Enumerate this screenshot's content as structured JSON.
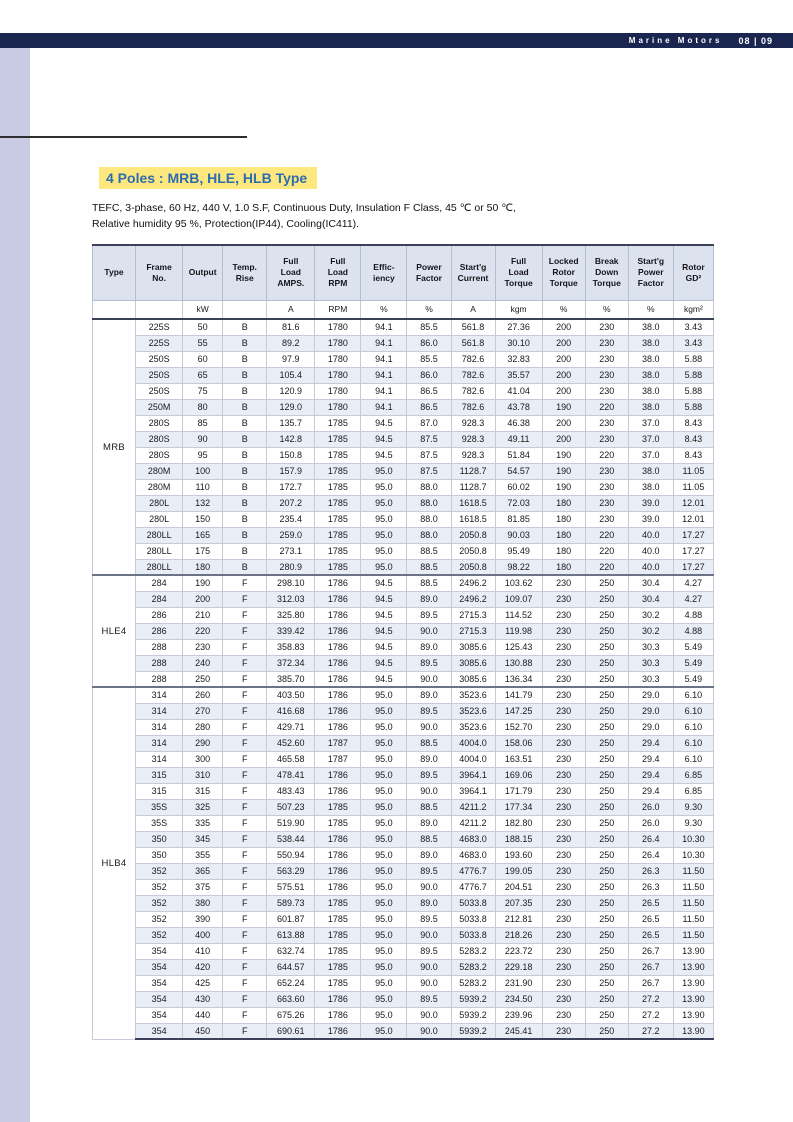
{
  "theme": {
    "navy": "#1a2550",
    "strip": "#c9cae3",
    "highlight": "#fce87f",
    "title-blue": "#2e6cb0",
    "header-bg": "#dde2ef",
    "stripe": "#e9edf6"
  },
  "header": {
    "brand": "Marine Motors",
    "page_no": "08 | 09"
  },
  "section": {
    "title": "4 Poles : MRB, HLE, HLB Type",
    "description_line1": "TEFC, 3-phase, 60 Hz, 440 V, 1.0 S.F, Continuous Duty, Insulation F Class, 45 ℃ or 50 ℃,",
    "description_line2": "Relative humidity 95 %, Protection(IP44), Cooling(IC411)."
  },
  "table": {
    "columns": [
      {
        "key": "type",
        "label": "Type",
        "unit": ""
      },
      {
        "key": "frame_no",
        "label": "Frame\nNo.",
        "unit": ""
      },
      {
        "key": "output",
        "label": "Output",
        "unit": "kW"
      },
      {
        "key": "temp_rise",
        "label": "Temp.\nRise",
        "unit": ""
      },
      {
        "key": "full_load_amps",
        "label": "Full\nLoad\nAMPS.",
        "unit": "A"
      },
      {
        "key": "full_load_rpm",
        "label": "Full\nLoad\nRPM",
        "unit": "RPM"
      },
      {
        "key": "efficiency",
        "label": "Effic-\niency",
        "unit": "%"
      },
      {
        "key": "power_factor",
        "label": "Power\nFactor",
        "unit": "%"
      },
      {
        "key": "starting_current",
        "label": "Start'g\nCurrent",
        "unit": "A"
      },
      {
        "key": "full_load_torque",
        "label": "Full\nLoad\nTorque",
        "unit": "kgm"
      },
      {
        "key": "locked_rotor_torque",
        "label": "Locked\nRotor\nTorque",
        "unit": "%"
      },
      {
        "key": "break_down_torque",
        "label": "Break\nDown\nTorque",
        "unit": "%"
      },
      {
        "key": "starting_power_factor",
        "label": "Start'g\nPower\nFactor",
        "unit": "%"
      },
      {
        "key": "rotor_gd2",
        "label": "Rotor\nGD²",
        "unit": "kgm²"
      }
    ],
    "groups": [
      {
        "type": "MRB",
        "rows": [
          [
            "225S",
            "50",
            "B",
            "81.6",
            "1780",
            "94.1",
            "85.5",
            "561.8",
            "27.36",
            "200",
            "230",
            "38.0",
            "3.43"
          ],
          [
            "225S",
            "55",
            "B",
            "89.2",
            "1780",
            "94.1",
            "86.0",
            "561.8",
            "30.10",
            "200",
            "230",
            "38.0",
            "3.43"
          ],
          [
            "250S",
            "60",
            "B",
            "97.9",
            "1780",
            "94.1",
            "85.5",
            "782.6",
            "32.83",
            "200",
            "230",
            "38.0",
            "5.88"
          ],
          [
            "250S",
            "65",
            "B",
            "105.4",
            "1780",
            "94.1",
            "86.0",
            "782.6",
            "35.57",
            "200",
            "230",
            "38.0",
            "5.88"
          ],
          [
            "250S",
            "75",
            "B",
            "120.9",
            "1780",
            "94.1",
            "86.5",
            "782.6",
            "41.04",
            "200",
            "230",
            "38.0",
            "5.88"
          ],
          [
            "250M",
            "80",
            "B",
            "129.0",
            "1780",
            "94.1",
            "86.5",
            "782.6",
            "43.78",
            "190",
            "220",
            "38.0",
            "5.88"
          ],
          [
            "280S",
            "85",
            "B",
            "135.7",
            "1785",
            "94.5",
            "87.0",
            "928.3",
            "46.38",
            "200",
            "230",
            "37.0",
            "8.43"
          ],
          [
            "280S",
            "90",
            "B",
            "142.8",
            "1785",
            "94.5",
            "87.5",
            "928.3",
            "49.11",
            "200",
            "230",
            "37.0",
            "8.43"
          ],
          [
            "280S",
            "95",
            "B",
            "150.8",
            "1785",
            "94.5",
            "87.5",
            "928.3",
            "51.84",
            "190",
            "220",
            "37.0",
            "8.43"
          ],
          [
            "280M",
            "100",
            "B",
            "157.9",
            "1785",
            "95.0",
            "87.5",
            "1128.7",
            "54.57",
            "190",
            "230",
            "38.0",
            "11.05"
          ],
          [
            "280M",
            "110",
            "B",
            "172.7",
            "1785",
            "95.0",
            "88.0",
            "1128.7",
            "60.02",
            "190",
            "230",
            "38.0",
            "11.05"
          ],
          [
            "280L",
            "132",
            "B",
            "207.2",
            "1785",
            "95.0",
            "88.0",
            "1618.5",
            "72.03",
            "180",
            "230",
            "39.0",
            "12.01"
          ],
          [
            "280L",
            "150",
            "B",
            "235.4",
            "1785",
            "95.0",
            "88.0",
            "1618.5",
            "81.85",
            "180",
            "230",
            "39.0",
            "12.01"
          ],
          [
            "280LL",
            "165",
            "B",
            "259.0",
            "1785",
            "95.0",
            "88.0",
            "2050.8",
            "90.03",
            "180",
            "220",
            "40.0",
            "17.27"
          ],
          [
            "280LL",
            "175",
            "B",
            "273.1",
            "1785",
            "95.0",
            "88.5",
            "2050.8",
            "95.49",
            "180",
            "220",
            "40.0",
            "17.27"
          ],
          [
            "280LL",
            "180",
            "B",
            "280.9",
            "1785",
            "95.0",
            "88.5",
            "2050.8",
            "98.22",
            "180",
            "220",
            "40.0",
            "17.27"
          ]
        ]
      },
      {
        "type": "HLE4",
        "rows": [
          [
            "284",
            "190",
            "F",
            "298.10",
            "1786",
            "94.5",
            "88.5",
            "2496.2",
            "103.62",
            "230",
            "250",
            "30.4",
            "4.27"
          ],
          [
            "284",
            "200",
            "F",
            "312.03",
            "1786",
            "94.5",
            "89.0",
            "2496.2",
            "109.07",
            "230",
            "250",
            "30.4",
            "4.27"
          ],
          [
            "286",
            "210",
            "F",
            "325.80",
            "1786",
            "94.5",
            "89.5",
            "2715.3",
            "114.52",
            "230",
            "250",
            "30.2",
            "4.88"
          ],
          [
            "286",
            "220",
            "F",
            "339.42",
            "1786",
            "94.5",
            "90.0",
            "2715.3",
            "119.98",
            "230",
            "250",
            "30.2",
            "4.88"
          ],
          [
            "288",
            "230",
            "F",
            "358.83",
            "1786",
            "94.5",
            "89.0",
            "3085.6",
            "125.43",
            "230",
            "250",
            "30.3",
            "5.49"
          ],
          [
            "288",
            "240",
            "F",
            "372.34",
            "1786",
            "94.5",
            "89.5",
            "3085.6",
            "130.88",
            "230",
            "250",
            "30.3",
            "5.49"
          ],
          [
            "288",
            "250",
            "F",
            "385.70",
            "1786",
            "94.5",
            "90.0",
            "3085.6",
            "136.34",
            "230",
            "250",
            "30.3",
            "5.49"
          ]
        ]
      },
      {
        "type": "HLB4",
        "rows": [
          [
            "314",
            "260",
            "F",
            "403.50",
            "1786",
            "95.0",
            "89.0",
            "3523.6",
            "141.79",
            "230",
            "250",
            "29.0",
            "6.10"
          ],
          [
            "314",
            "270",
            "F",
            "416.68",
            "1786",
            "95.0",
            "89.5",
            "3523.6",
            "147.25",
            "230",
            "250",
            "29.0",
            "6.10"
          ],
          [
            "314",
            "280",
            "F",
            "429.71",
            "1786",
            "95.0",
            "90.0",
            "3523.6",
            "152.70",
            "230",
            "250",
            "29.0",
            "6.10"
          ],
          [
            "314",
            "290",
            "F",
            "452.60",
            "1787",
            "95.0",
            "88.5",
            "4004.0",
            "158.06",
            "230",
            "250",
            "29.4",
            "6.10"
          ],
          [
            "314",
            "300",
            "F",
            "465.58",
            "1787",
            "95.0",
            "89.0",
            "4004.0",
            "163.51",
            "230",
            "250",
            "29.4",
            "6.10"
          ],
          [
            "315",
            "310",
            "F",
            "478.41",
            "1786",
            "95.0",
            "89.5",
            "3964.1",
            "169.06",
            "230",
            "250",
            "29.4",
            "6.85"
          ],
          [
            "315",
            "315",
            "F",
            "483.43",
            "1786",
            "95.0",
            "90.0",
            "3964.1",
            "171.79",
            "230",
            "250",
            "29.4",
            "6.85"
          ],
          [
            "35S",
            "325",
            "F",
            "507.23",
            "1785",
            "95.0",
            "88.5",
            "4211.2",
            "177.34",
            "230",
            "250",
            "26.0",
            "9.30"
          ],
          [
            "35S",
            "335",
            "F",
            "519.90",
            "1785",
            "95.0",
            "89.0",
            "4211.2",
            "182.80",
            "230",
            "250",
            "26.0",
            "9.30"
          ],
          [
            "350",
            "345",
            "F",
            "538.44",
            "1786",
            "95.0",
            "88.5",
            "4683.0",
            "188.15",
            "230",
            "250",
            "26.4",
            "10.30"
          ],
          [
            "350",
            "355",
            "F",
            "550.94",
            "1786",
            "95.0",
            "89.0",
            "4683.0",
            "193.60",
            "230",
            "250",
            "26.4",
            "10.30"
          ],
          [
            "352",
            "365",
            "F",
            "563.29",
            "1786",
            "95.0",
            "89.5",
            "4776.7",
            "199.05",
            "230",
            "250",
            "26.3",
            "11.50"
          ],
          [
            "352",
            "375",
            "F",
            "575.51",
            "1786",
            "95.0",
            "90.0",
            "4776.7",
            "204.51",
            "230",
            "250",
            "26.3",
            "11.50"
          ],
          [
            "352",
            "380",
            "F",
            "589.73",
            "1785",
            "95.0",
            "89.0",
            "5033.8",
            "207.35",
            "230",
            "250",
            "26.5",
            "11.50"
          ],
          [
            "352",
            "390",
            "F",
            "601.87",
            "1785",
            "95.0",
            "89.5",
            "5033.8",
            "212.81",
            "230",
            "250",
            "26.5",
            "11.50"
          ],
          [
            "352",
            "400",
            "F",
            "613.88",
            "1785",
            "95.0",
            "90.0",
            "5033.8",
            "218.26",
            "230",
            "250",
            "26.5",
            "11.50"
          ],
          [
            "354",
            "410",
            "F",
            "632.74",
            "1785",
            "95.0",
            "89.5",
            "5283.2",
            "223.72",
            "230",
            "250",
            "26.7",
            "13.90"
          ],
          [
            "354",
            "420",
            "F",
            "644.57",
            "1785",
            "95.0",
            "90.0",
            "5283.2",
            "229.18",
            "230",
            "250",
            "26.7",
            "13.90"
          ],
          [
            "354",
            "425",
            "F",
            "652.24",
            "1785",
            "95.0",
            "90.0",
            "5283.2",
            "231.90",
            "230",
            "250",
            "26.7",
            "13.90"
          ],
          [
            "354",
            "430",
            "F",
            "663.60",
            "1786",
            "95.0",
            "89.5",
            "5939.2",
            "234.50",
            "230",
            "250",
            "27.2",
            "13.90"
          ],
          [
            "354",
            "440",
            "F",
            "675.26",
            "1786",
            "95.0",
            "90.0",
            "5939.2",
            "239.96",
            "230",
            "250",
            "27.2",
            "13.90"
          ],
          [
            "354",
            "450",
            "F",
            "690.61",
            "1786",
            "95.0",
            "90.0",
            "5939.2",
            "245.41",
            "230",
            "250",
            "27.2",
            "13.90"
          ]
        ]
      }
    ]
  }
}
